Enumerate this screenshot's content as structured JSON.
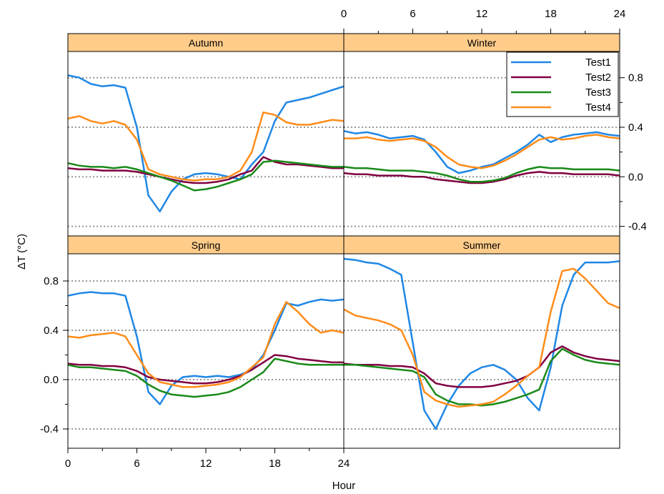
{
  "chart_data": {
    "type": "line",
    "layout": "2x2 panels",
    "xlabel": "Hour",
    "ylabel": "ΔT (°C)",
    "xlim": [
      0,
      24
    ],
    "ylim": [
      -0.5,
      1.0
    ],
    "x_ticks": [
      0,
      6,
      12,
      18,
      24
    ],
    "y_ticks": [
      -0.4,
      0.0,
      0.4,
      0.8
    ],
    "y_tick_labels": [
      "-0.4",
      "0.0",
      "0.4",
      "0.8"
    ],
    "x_tick_labels": [
      "0",
      "6",
      "12",
      "18",
      "24"
    ],
    "grid": "horizontal dotted at y ticks",
    "legend": {
      "placement": "top-right of Winter panel",
      "entries": [
        "Test1",
        "Test2",
        "Test3",
        "Test4"
      ]
    },
    "series_colors": {
      "Test1": "#1f87e5",
      "Test2": "#800040",
      "Test3": "#1a8a1a",
      "Test4": "#ff8c1a"
    },
    "strip_color": "#ffcc8a",
    "x": [
      0,
      1,
      2,
      3,
      4,
      5,
      6,
      7,
      8,
      9,
      10,
      11,
      12,
      13,
      14,
      15,
      16,
      17,
      18,
      19,
      20,
      21,
      22,
      23,
      24
    ],
    "panels": [
      {
        "name": "Autumn",
        "series": [
          {
            "name": "Test1",
            "values": [
              0.82,
              0.8,
              0.75,
              0.73,
              0.74,
              0.72,
              0.4,
              -0.15,
              -0.28,
              -0.12,
              -0.02,
              0.02,
              0.03,
              0.02,
              0.0,
              -0.02,
              0.1,
              0.2,
              0.45,
              0.6,
              0.62,
              0.64,
              0.67,
              0.7,
              0.73
            ]
          },
          {
            "name": "Test2",
            "values": [
              0.07,
              0.06,
              0.06,
              0.05,
              0.05,
              0.05,
              0.04,
              0.02,
              0.0,
              -0.02,
              -0.04,
              -0.05,
              -0.05,
              -0.04,
              -0.02,
              0.02,
              0.05,
              0.16,
              0.12,
              0.1,
              0.1,
              0.09,
              0.08,
              0.07,
              0.07
            ]
          },
          {
            "name": "Test3",
            "values": [
              0.11,
              0.09,
              0.08,
              0.08,
              0.07,
              0.08,
              0.06,
              0.03,
              0.0,
              -0.03,
              -0.07,
              -0.11,
              -0.1,
              -0.08,
              -0.05,
              -0.02,
              0.02,
              0.12,
              0.13,
              0.12,
              0.11,
              0.1,
              0.09,
              0.08,
              0.08
            ]
          },
          {
            "name": "Test4",
            "values": [
              0.47,
              0.49,
              0.45,
              0.43,
              0.45,
              0.42,
              0.3,
              0.06,
              0.02,
              0.0,
              -0.02,
              -0.03,
              -0.02,
              -0.02,
              0.0,
              0.05,
              0.2,
              0.52,
              0.5,
              0.44,
              0.42,
              0.42,
              0.44,
              0.46,
              0.45
            ]
          }
        ]
      },
      {
        "name": "Winter",
        "series": [
          {
            "name": "Test1",
            "values": [
              0.37,
              0.35,
              0.36,
              0.34,
              0.31,
              0.32,
              0.33,
              0.3,
              0.2,
              0.08,
              0.03,
              0.05,
              0.08,
              0.1,
              0.15,
              0.2,
              0.26,
              0.34,
              0.28,
              0.32,
              0.34,
              0.35,
              0.36,
              0.34,
              0.33
            ]
          },
          {
            "name": "Test2",
            "values": [
              0.03,
              0.02,
              0.02,
              0.01,
              0.01,
              0.01,
              0.0,
              0.0,
              -0.02,
              -0.03,
              -0.04,
              -0.05,
              -0.05,
              -0.04,
              -0.02,
              0.01,
              0.03,
              0.04,
              0.03,
              0.03,
              0.02,
              0.02,
              0.02,
              0.02,
              0.01
            ]
          },
          {
            "name": "Test3",
            "values": [
              0.08,
              0.07,
              0.07,
              0.06,
              0.05,
              0.05,
              0.05,
              0.04,
              0.03,
              0.01,
              -0.02,
              -0.04,
              -0.04,
              -0.03,
              -0.01,
              0.03,
              0.06,
              0.08,
              0.07,
              0.07,
              0.06,
              0.06,
              0.06,
              0.06,
              0.05
            ]
          },
          {
            "name": "Test4",
            "values": [
              0.31,
              0.31,
              0.32,
              0.3,
              0.29,
              0.3,
              0.31,
              0.29,
              0.24,
              0.16,
              0.1,
              0.08,
              0.07,
              0.09,
              0.13,
              0.18,
              0.24,
              0.3,
              0.32,
              0.3,
              0.31,
              0.33,
              0.34,
              0.32,
              0.31
            ]
          }
        ]
      },
      {
        "name": "Spring",
        "series": [
          {
            "name": "Test1",
            "values": [
              0.68,
              0.7,
              0.71,
              0.7,
              0.7,
              0.68,
              0.35,
              -0.1,
              -0.2,
              -0.05,
              0.02,
              0.03,
              0.02,
              0.03,
              0.02,
              0.04,
              0.08,
              0.2,
              0.4,
              0.62,
              0.6,
              0.63,
              0.65,
              0.64,
              0.65
            ]
          },
          {
            "name": "Test2",
            "values": [
              0.13,
              0.12,
              0.12,
              0.11,
              0.11,
              0.1,
              0.07,
              0.02,
              0.0,
              -0.01,
              -0.02,
              -0.03,
              -0.03,
              -0.02,
              0.0,
              0.03,
              0.08,
              0.14,
              0.2,
              0.19,
              0.17,
              0.16,
              0.15,
              0.14,
              0.14
            ]
          },
          {
            "name": "Test3",
            "values": [
              0.12,
              0.1,
              0.1,
              0.09,
              0.08,
              0.07,
              0.03,
              -0.04,
              -0.09,
              -0.12,
              -0.13,
              -0.14,
              -0.13,
              -0.12,
              -0.1,
              -0.06,
              0.0,
              0.06,
              0.17,
              0.15,
              0.13,
              0.12,
              0.12,
              0.12,
              0.12
            ]
          },
          {
            "name": "Test4",
            "values": [
              0.35,
              0.34,
              0.36,
              0.37,
              0.38,
              0.35,
              0.2,
              0.05,
              -0.02,
              -0.04,
              -0.06,
              -0.06,
              -0.05,
              -0.04,
              -0.02,
              0.02,
              0.1,
              0.18,
              0.45,
              0.63,
              0.55,
              0.45,
              0.38,
              0.4,
              0.38
            ]
          }
        ]
      },
      {
        "name": "Summer",
        "series": [
          {
            "name": "Test1",
            "values": [
              0.98,
              0.97,
              0.95,
              0.94,
              0.9,
              0.85,
              0.3,
              -0.25,
              -0.4,
              -0.2,
              -0.05,
              0.05,
              0.1,
              0.12,
              0.08,
              0.0,
              -0.15,
              -0.25,
              0.1,
              0.6,
              0.85,
              0.95,
              0.95,
              0.95,
              0.96
            ]
          },
          {
            "name": "Test2",
            "values": [
              0.13,
              0.12,
              0.12,
              0.12,
              0.11,
              0.11,
              0.1,
              0.05,
              -0.03,
              -0.05,
              -0.06,
              -0.06,
              -0.06,
              -0.05,
              -0.03,
              -0.01,
              0.03,
              0.1,
              0.22,
              0.27,
              0.22,
              0.19,
              0.17,
              0.16,
              0.15
            ]
          },
          {
            "name": "Test3",
            "values": [
              0.12,
              0.12,
              0.11,
              0.1,
              0.09,
              0.08,
              0.07,
              0.02,
              -0.12,
              -0.17,
              -0.2,
              -0.2,
              -0.21,
              -0.2,
              -0.18,
              -0.15,
              -0.12,
              -0.08,
              0.15,
              0.25,
              0.2,
              0.16,
              0.14,
              0.13,
              0.12
            ]
          },
          {
            "name": "Test4",
            "values": [
              0.57,
              0.52,
              0.5,
              0.48,
              0.45,
              0.4,
              0.2,
              -0.1,
              -0.17,
              -0.2,
              -0.22,
              -0.21,
              -0.2,
              -0.18,
              -0.12,
              -0.05,
              0.03,
              0.1,
              0.55,
              0.88,
              0.9,
              0.82,
              0.72,
              0.62,
              0.58
            ]
          }
        ]
      }
    ]
  }
}
